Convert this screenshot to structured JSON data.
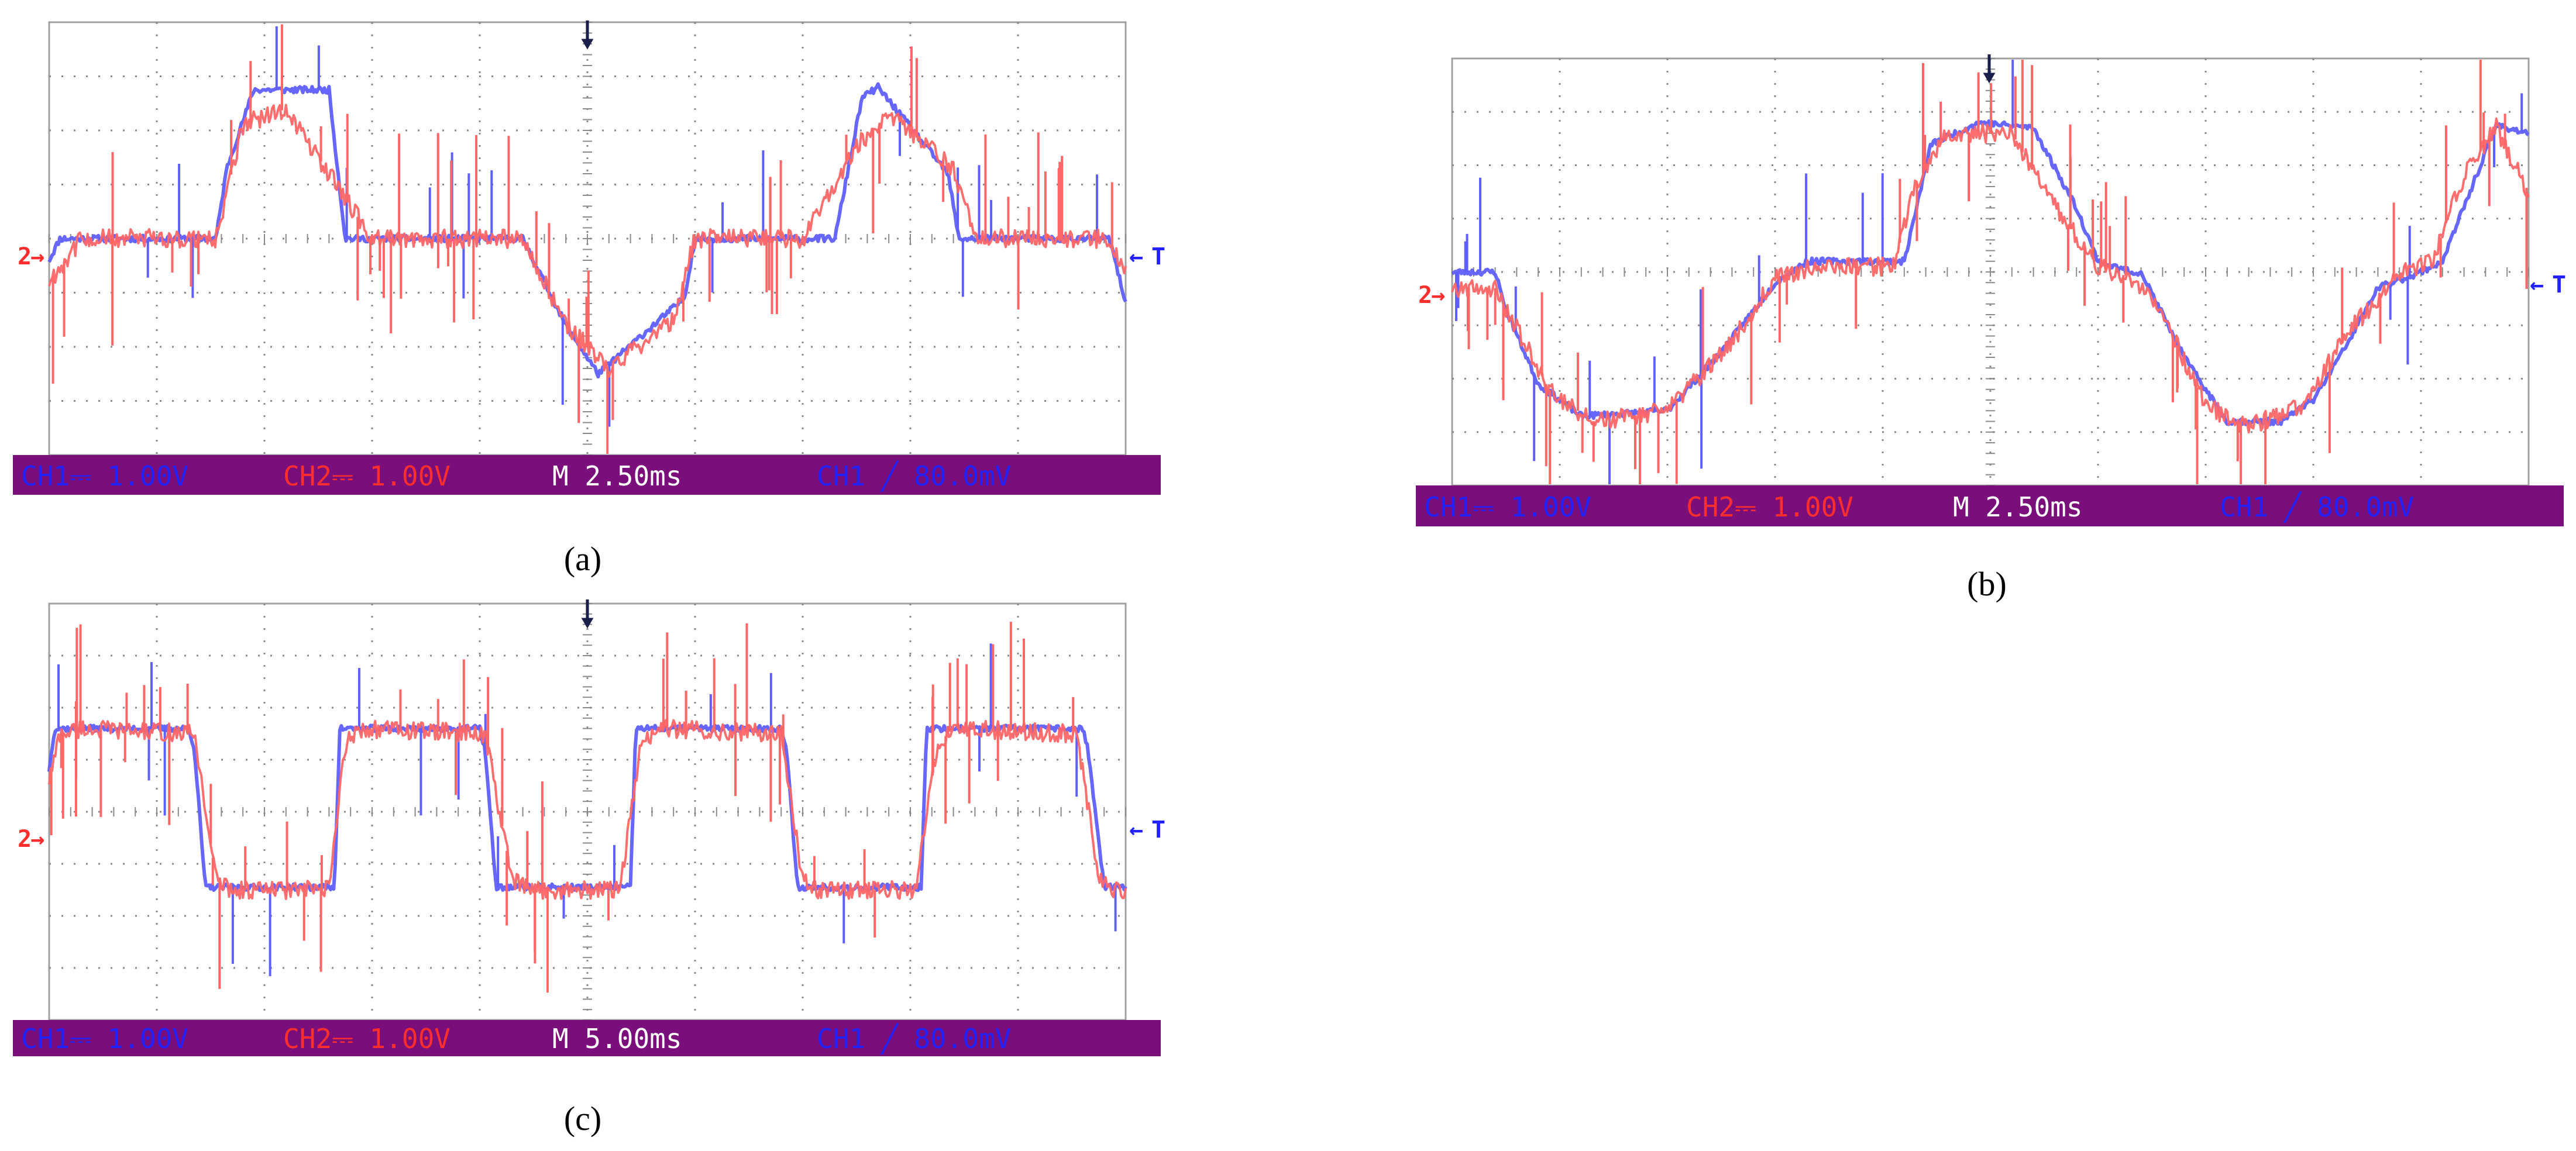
{
  "colors": {
    "ch1": "#5f5fff",
    "ch2": "#ff6666",
    "status_bar": "#7a0e7a",
    "status_ch1": "#2222ff",
    "status_ch2": "#ff2e2e",
    "status_time": "#ffffff",
    "grid": "#8a8a8a",
    "frame": "#a0a0a0",
    "trigger_arrow": "#1a1f4a"
  },
  "panels": [
    {
      "label": "(a)",
      "status": {
        "ch1": "CH1⎓ 1.00V",
        "ch2": "CH2⎓ 1.00V",
        "time": "M 2.50ms",
        "trigger": "CH1 ╱ 80.0mV"
      },
      "markers": {
        "left": "2",
        "right": "T"
      }
    },
    {
      "label": "(b)",
      "status": {
        "ch1": "CH1⎓ 1.00V",
        "ch2": "CH2⎓ 1.00V",
        "time": "M 2.50ms",
        "trigger": "CH1 ╱ 80.0mV"
      },
      "markers": {
        "left": "2",
        "right": "T"
      }
    },
    {
      "label": "(c)",
      "status": {
        "ch1": "CH1⎓ 1.00V",
        "ch2": "CH2⎓ 1.00V",
        "time": "M 5.00ms",
        "trigger": "CH1 ╱ 80.0mV"
      },
      "markers": {
        "left": "2",
        "right": "T"
      }
    }
  ],
  "chart_data": [
    {
      "type": "line",
      "panel": "(a)",
      "x_unit": "div",
      "y_unit": "div",
      "xlim": [
        0,
        10
      ],
      "ylim": [
        -4,
        4
      ],
      "grid": true,
      "series": [
        {
          "name": "CH1",
          "x": [
            0,
            0.1,
            1.55,
            1.65,
            1.9,
            2.6,
            2.75,
            4.2,
            4.4,
            4.8,
            5.1,
            5.9,
            6.0,
            7.3,
            7.55,
            7.7,
            8.35,
            8.45,
            9.85,
            10
          ],
          "y": [
            -0.4,
            0,
            0,
            1.3,
            2.75,
            2.75,
            0,
            0,
            0,
            -1.6,
            -2.5,
            -1.1,
            0,
            0,
            2.6,
            2.8,
            1.2,
            0,
            0,
            -1.2
          ]
        },
        {
          "name": "CH2",
          "x": [
            0,
            0.3,
            1.55,
            1.8,
            2.2,
            3.0,
            4.4,
            4.8,
            5.2,
            5.8,
            6.0,
            7.0,
            7.5,
            7.8,
            8.4,
            8.6,
            9.8,
            10
          ],
          "y": [
            -0.8,
            0,
            0,
            2.1,
            2.4,
            0,
            0,
            -1.6,
            -2.4,
            -1.5,
            0,
            0,
            1.7,
            2.3,
            1.3,
            0,
            0,
            -0.6
          ]
        }
      ]
    },
    {
      "type": "line",
      "panel": "(b)",
      "x_unit": "div",
      "y_unit": "div",
      "xlim": [
        0,
        10
      ],
      "ylim": [
        -4,
        4
      ],
      "grid": true,
      "series": [
        {
          "name": "CH1",
          "x": [
            0,
            0.4,
            0.5,
            0.8,
            1.2,
            2.0,
            2.5,
            3.0,
            3.3,
            3.5,
            4.2,
            4.45,
            4.9,
            5.4,
            5.8,
            6.0,
            6.3,
            6.4,
            6.8,
            7.2,
            7.7,
            8.0,
            8.3,
            8.6,
            9.0,
            9.2,
            9.7,
            10
          ],
          "y": [
            0,
            0,
            -0.7,
            -2.1,
            -2.7,
            -2.6,
            -1.5,
            -0.2,
            0.2,
            0.2,
            0.2,
            2.4,
            2.8,
            2.7,
            1.2,
            0.2,
            0,
            0,
            -1.6,
            -2.8,
            -2.8,
            -2.4,
            -1.4,
            -0.3,
            0,
            0.2,
            2.75,
            2.6
          ]
        },
        {
          "name": "CH2",
          "x": [
            0,
            0.4,
            0.9,
            1.3,
            2.0,
            2.6,
            3.0,
            3.4,
            4.1,
            4.3,
            4.6,
            5.2,
            5.5,
            6.0,
            6.3,
            6.6,
            7.0,
            7.4,
            7.9,
            8.3,
            8.8,
            9.1,
            9.4,
            9.7,
            10
          ],
          "y": [
            -0.3,
            -0.3,
            -2.2,
            -2.8,
            -2.6,
            -1.3,
            -0.1,
            0.1,
            0.1,
            1.6,
            2.6,
            2.6,
            1.5,
            0.1,
            -0.1,
            -0.8,
            -2.5,
            -2.9,
            -2.5,
            -1.2,
            0,
            0.2,
            1.8,
            2.7,
            1.5
          ]
        }
      ]
    },
    {
      "type": "line",
      "panel": "(c)",
      "x_unit": "div",
      "y_unit": "div",
      "xlim": [
        0,
        10
      ],
      "ylim": [
        -4,
        4
      ],
      "grid": true,
      "series": [
        {
          "name": "CH1",
          "x": [
            0,
            0.05,
            1.3,
            1.35,
            1.45,
            2.65,
            2.7,
            4.0,
            4.05,
            4.15,
            5.4,
            5.45,
            6.8,
            6.85,
            6.95,
            8.1,
            8.15,
            9.6,
            9.65,
            9.8,
            10
          ],
          "y": [
            0.8,
            1.6,
            1.6,
            1.2,
            -1.45,
            -1.45,
            1.6,
            1.6,
            1.2,
            -1.45,
            -1.45,
            1.6,
            1.6,
            1.2,
            -1.45,
            -1.45,
            1.6,
            1.6,
            1.2,
            -1.45,
            -1.45
          ]
        },
        {
          "name": "CH2",
          "x": [
            0,
            0.1,
            0.3,
            1.35,
            1.55,
            1.7,
            2.6,
            2.75,
            2.9,
            4.05,
            4.3,
            4.45,
            5.3,
            5.5,
            5.65,
            6.8,
            7.0,
            7.15,
            8.05,
            8.25,
            8.4,
            9.55,
            9.75,
            9.9,
            10
          ],
          "y": [
            0.6,
            1.5,
            1.6,
            1.5,
            -1.3,
            -1.5,
            -1.5,
            1.3,
            1.6,
            1.5,
            -1.3,
            -1.5,
            -1.5,
            1.3,
            1.6,
            1.5,
            -1.3,
            -1.5,
            -1.5,
            1.3,
            1.6,
            1.5,
            -1.3,
            -1.5,
            -1.5
          ]
        }
      ]
    }
  ]
}
